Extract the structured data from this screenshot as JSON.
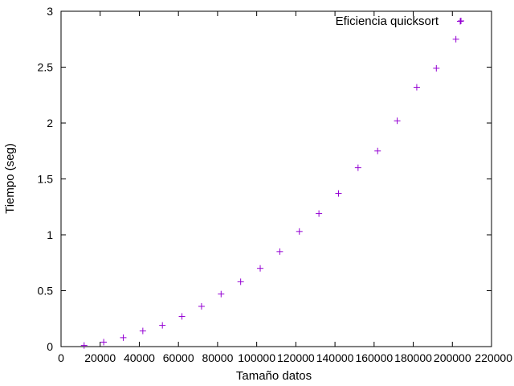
{
  "chart_data": {
    "type": "scatter",
    "title": "",
    "xlabel": "Tamaño datos",
    "ylabel": "Tiempo (seg)",
    "xlim": [
      0,
      220000
    ],
    "ylim": [
      0,
      3
    ],
    "xticks": [
      0,
      20000,
      40000,
      60000,
      80000,
      100000,
      120000,
      140000,
      160000,
      180000,
      200000,
      220000
    ],
    "yticks": [
      0,
      0.5,
      1,
      1.5,
      2,
      2.5,
      3
    ],
    "xtick_labels": [
      "0",
      "20000",
      "40000",
      "60000",
      "80000",
      "100000",
      "120000",
      "140000",
      "160000",
      "180000",
      "200000",
      "220000"
    ],
    "ytick_labels": [
      "0",
      "0.5",
      "1",
      "1.5",
      "2",
      "2.5",
      "3"
    ],
    "grid": false,
    "legend_position": "top-right",
    "marker": "plus",
    "color": "#9400d3",
    "series": [
      {
        "name": "Eficiencia quicksort",
        "x": [
          11800,
          21800,
          31800,
          41800,
          51800,
          61800,
          71800,
          81800,
          91800,
          101800,
          111800,
          121800,
          131800,
          141800,
          151800,
          161800,
          171800,
          181800,
          191800,
          201800,
          204000
        ],
        "y": [
          0.01,
          0.04,
          0.08,
          0.14,
          0.19,
          0.27,
          0.36,
          0.47,
          0.58,
          0.7,
          0.85,
          1.03,
          1.19,
          1.37,
          1.6,
          1.75,
          2.02,
          2.32,
          2.49,
          2.75,
          2.91
        ]
      }
    ]
  }
}
